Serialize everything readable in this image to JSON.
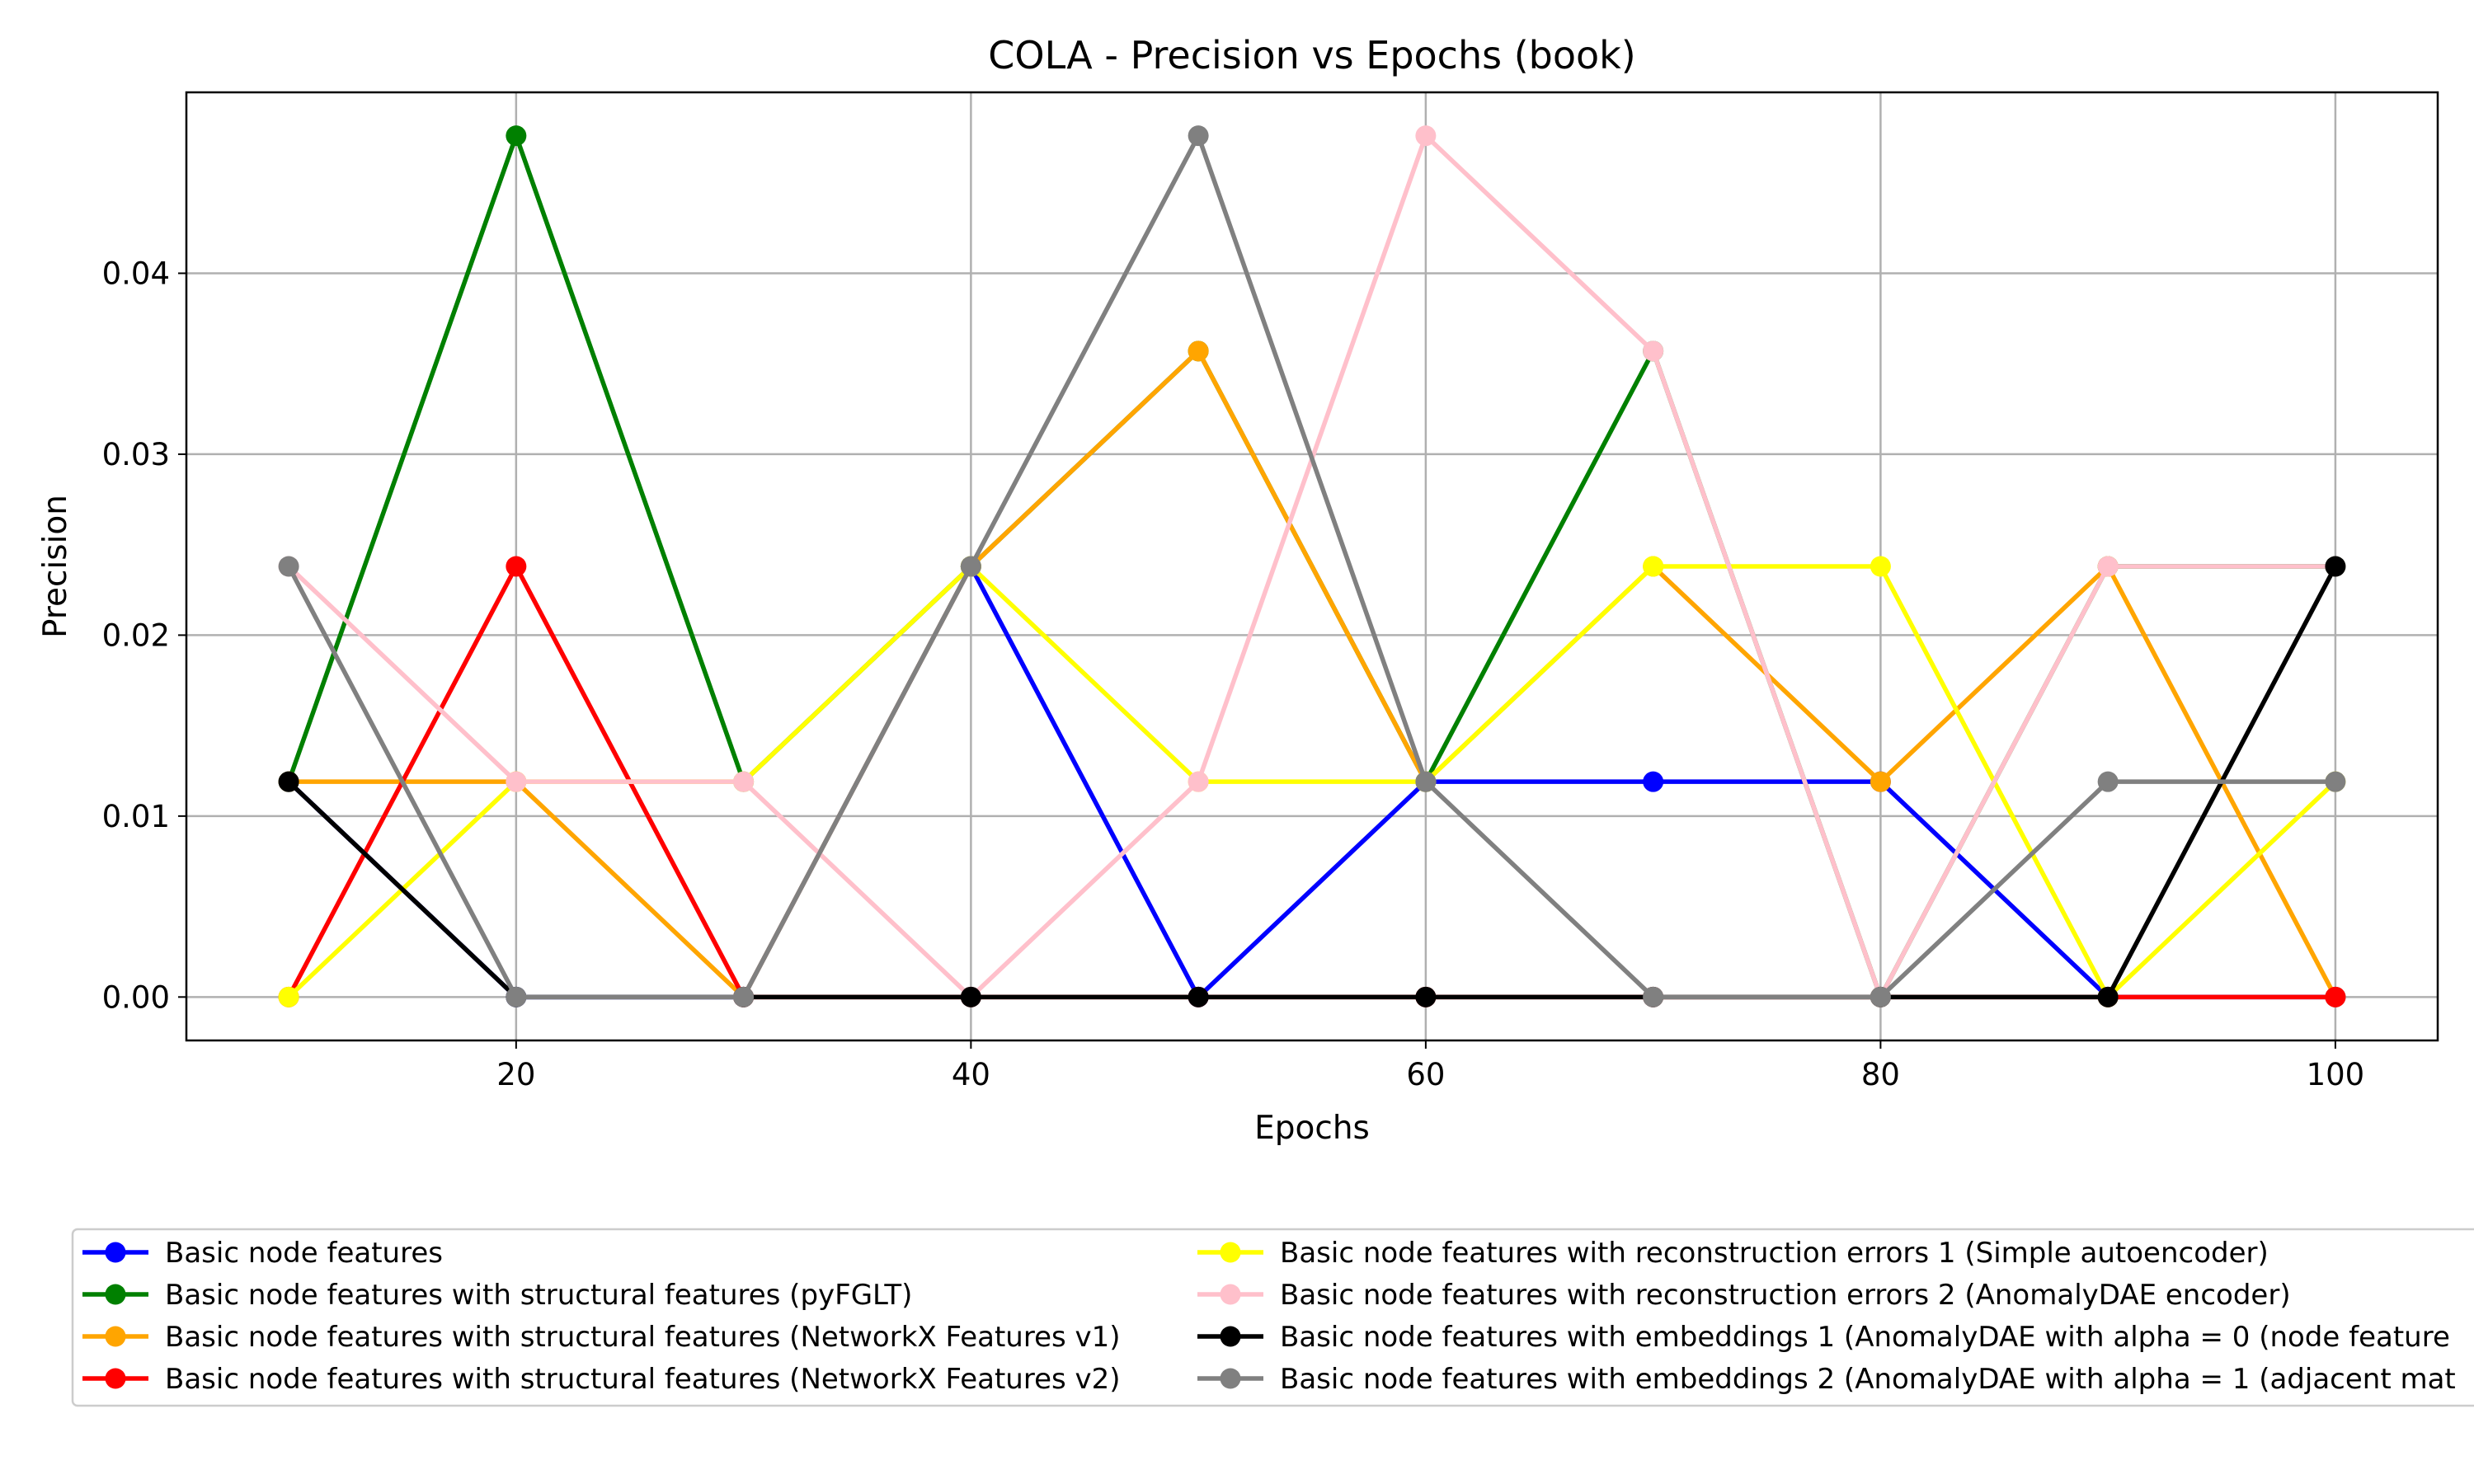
{
  "chart_data": {
    "type": "line",
    "title": "COLA - Precision vs Epochs (book)",
    "xlabel": "Epochs",
    "ylabel": "Precision",
    "x": [
      10,
      20,
      30,
      40,
      50,
      60,
      70,
      80,
      90,
      100
    ],
    "xlim": [
      5.5,
      104.5
    ],
    "ylim": [
      -0.0024,
      0.05
    ],
    "xticks": [
      20,
      40,
      60,
      80,
      100
    ],
    "xtick_labels": [
      "20",
      "40",
      "60",
      "80",
      "100"
    ],
    "yticks": [
      0.0,
      0.01,
      0.02,
      0.03,
      0.04
    ],
    "ytick_labels": [
      "0.00",
      "0.01",
      "0.02",
      "0.03",
      "0.04"
    ],
    "grid": true,
    "legend_position": "below plot, two columns",
    "series": [
      {
        "name": "Basic node features",
        "color": "#0000ff",
        "values": [
          0.0119,
          0.0,
          0.0,
          0.0238,
          0.0,
          0.0119,
          0.0119,
          0.0119,
          0.0,
          0.0
        ]
      },
      {
        "name": "Basic node features with structural features (pyFGLT)",
        "color": "#008000",
        "values": [
          0.0119,
          0.0476,
          0.0119,
          0.0238,
          0.0357,
          0.0119,
          0.0357,
          0.0,
          0.0238,
          0.0238
        ]
      },
      {
        "name": "Basic node features with structural features (NetworkX Features v1)",
        "color": "#ffa500",
        "values": [
          0.0119,
          0.0119,
          0.0,
          0.0238,
          0.0357,
          0.0119,
          0.0238,
          0.0119,
          0.0238,
          0.0
        ]
      },
      {
        "name": "Basic node features with structural features (NetworkX Features v2)",
        "color": "#ff0000",
        "values": [
          0.0,
          0.0238,
          0.0,
          0.0,
          0.0,
          0.0,
          0.0,
          0.0,
          0.0,
          0.0
        ]
      },
      {
        "name": "Basic node features with reconstruction errors 1 (Simple autoencoder)",
        "color": "#ffff00",
        "values": [
          0.0,
          0.0119,
          0.0119,
          0.0238,
          0.0119,
          0.0119,
          0.0238,
          0.0238,
          0.0,
          0.0119
        ]
      },
      {
        "name": "Basic node features with reconstruction errors 2 (AnomalyDAE encoder)",
        "color": "#ffc0cb",
        "values": [
          0.0238,
          0.0119,
          0.0119,
          0.0,
          0.0119,
          0.0476,
          0.0357,
          0.0,
          0.0238,
          0.0238
        ]
      },
      {
        "name": "Basic node features with embeddings 1 (AnomalyDAE with alpha = 0 (node feature",
        "color": "#000000",
        "values": [
          0.0119,
          0.0,
          0.0,
          0.0,
          0.0,
          0.0,
          0.0,
          0.0,
          0.0,
          0.0238
        ]
      },
      {
        "name": "Basic node features with embeddings 2 (AnomalyDAE with alpha = 1 (adjacent mat",
        "color": "#808080",
        "values": [
          0.0238,
          0.0,
          0.0,
          0.0238,
          0.0476,
          0.0119,
          0.0,
          0.0,
          0.0119,
          0.0119
        ]
      }
    ]
  }
}
